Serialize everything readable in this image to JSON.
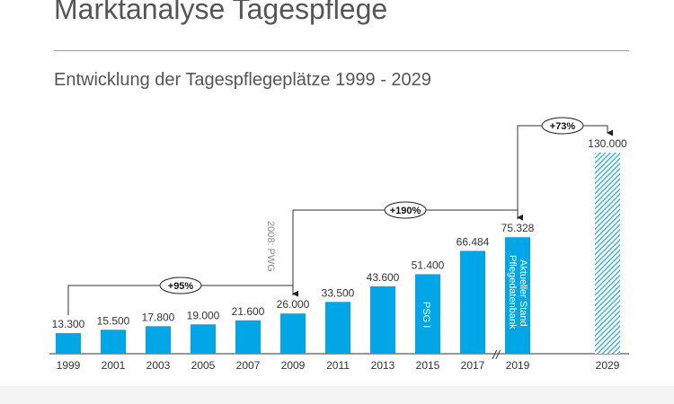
{
  "header": {
    "title": "Marktanalyse Tagespflege",
    "subtitle": "Entwicklung der Tagespflegeplätze 1999 - 2029"
  },
  "colors": {
    "bar": "#00a6e6",
    "text": "#555555",
    "axis": "#333333"
  },
  "chart_data": {
    "type": "bar",
    "title": "",
    "xlabel": "",
    "ylabel": "",
    "categories": [
      "1999",
      "2001",
      "2003",
      "2005",
      "2007",
      "2009",
      "2011",
      "2013",
      "2015",
      "2017",
      "2019",
      "2029"
    ],
    "values": [
      13300,
      15500,
      17800,
      19000,
      21600,
      26000,
      33500,
      43600,
      51400,
      66484,
      75328,
      130000
    ],
    "value_labels": [
      "13.300",
      "15.500",
      "17.800",
      "19.000",
      "21.600",
      "26.000",
      "33.500",
      "43.600",
      "51.400",
      "66.484",
      "75.328",
      "130.000"
    ],
    "hatched": [
      "2029"
    ],
    "ylim": [
      0,
      130000
    ],
    "grid": false,
    "annotations": {
      "pwg": "2008: PWG",
      "psg": "PSG I",
      "stand_line1": "Aktueller Stand",
      "stand_line2": "Pflegedatenbank",
      "axis_break": "//"
    },
    "growth": [
      {
        "label": "+95%",
        "from": "1999",
        "to": "2009"
      },
      {
        "label": "+190%",
        "from": "2009",
        "to": "2019"
      },
      {
        "label": "+73%",
        "from": "2019",
        "to": "2029"
      }
    ]
  }
}
